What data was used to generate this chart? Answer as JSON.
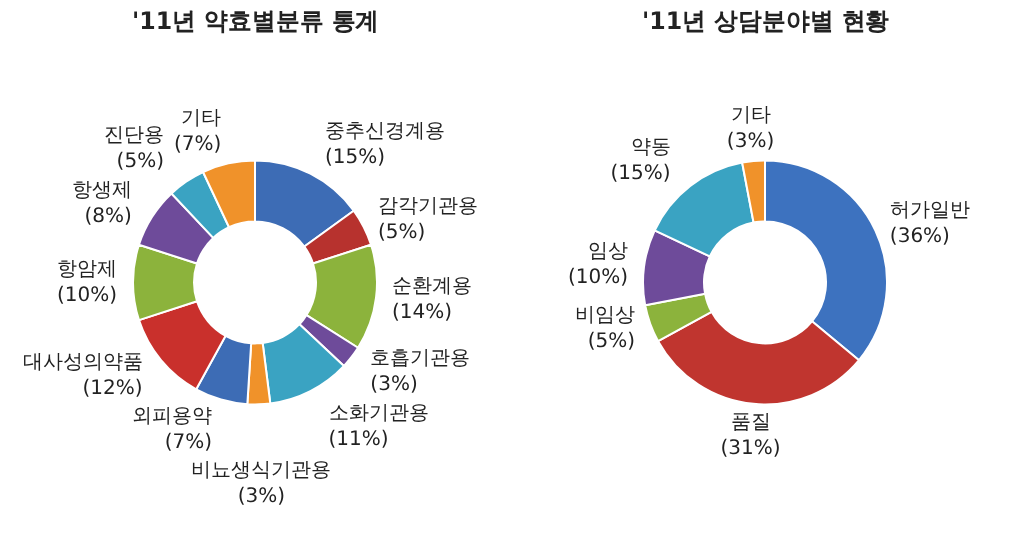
{
  "chart_data": [
    {
      "type": "donut",
      "title": "'11년 약효별분류 통계",
      "legend": false,
      "categories": [
        "중추신경계용",
        "감각기관용",
        "순환계용",
        "호흡기관용",
        "소화기관용",
        "비뇨생식기관용",
        "외피용약",
        "대사성의약품",
        "항암제",
        "항생제",
        "진단용",
        "기타"
      ],
      "values": [
        15,
        5,
        14,
        3,
        11,
        3,
        7,
        12,
        10,
        8,
        5,
        7
      ],
      "value_labels": [
        "(15%)",
        "(5%)",
        "(14%)",
        "(3%)",
        "(11%)",
        "(3%)",
        "(7%)",
        "(12%)",
        "(10%)",
        "(8%)",
        "(5%)",
        "(7%)"
      ],
      "colors": [
        "#3d6cb5",
        "#b7322e",
        "#8cb33c",
        "#6e4b9a",
        "#3aa3c2",
        "#f0922a",
        "#3d6cb5",
        "#c9302c",
        "#8cb33c",
        "#6e4b9a",
        "#3aa3c2",
        "#f0922a"
      ]
    },
    {
      "type": "donut",
      "title": "'11년 상담분야별 현황",
      "legend": false,
      "categories": [
        "허가일반",
        "품질",
        "비임상",
        "임상",
        "약동",
        "기타"
      ],
      "values": [
        36,
        31,
        5,
        10,
        15,
        3
      ],
      "value_labels": [
        "(36%)",
        "(31%)",
        "(5%)",
        "(10%)",
        "(15%)",
        "(3%)"
      ],
      "colors": [
        "#3d72bf",
        "#c0352f",
        "#8cb33c",
        "#6e4b9a",
        "#3aa3c2",
        "#f0922a"
      ]
    }
  ]
}
